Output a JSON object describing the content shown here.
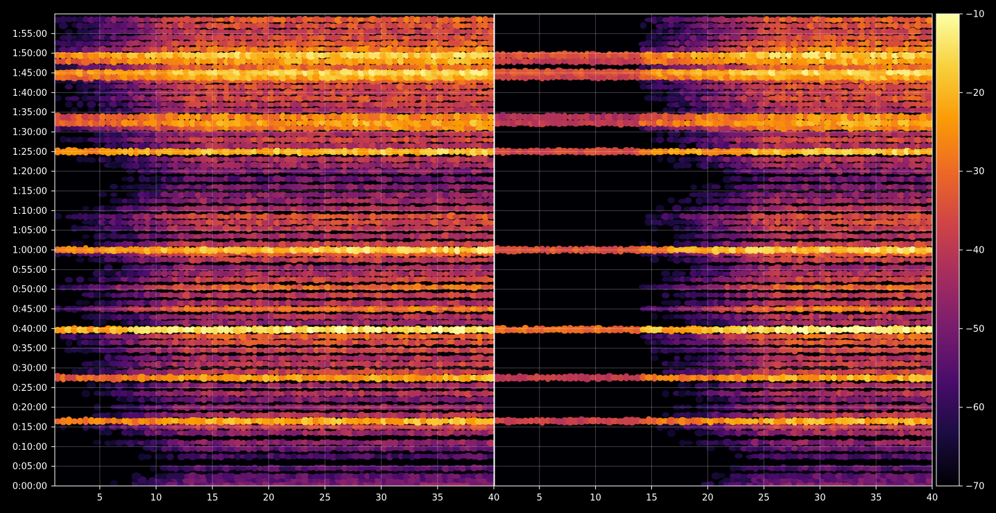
{
  "chart_data": {
    "type": "heatmap",
    "title": "",
    "xlabel": "",
    "ylabel": "",
    "background": "#000000",
    "grid": true,
    "colormap": "inferno",
    "colormap_stops": [
      "#000004",
      "#1b0c41",
      "#4a0c6b",
      "#781c6d",
      "#a52c60",
      "#cf4446",
      "#ed6925",
      "#fb9b06",
      "#f7d13d",
      "#fcffa4"
    ],
    "colorbar": {
      "range": [
        -70,
        -10
      ],
      "ticks": [
        -70,
        -60,
        -50,
        -40,
        -30,
        -20,
        -10
      ],
      "tick_labels": [
        "−70",
        "−60",
        "−50",
        "−40",
        "−30",
        "−20",
        "−10"
      ]
    },
    "y_axis": {
      "range_minutes": [
        0,
        120
      ],
      "ticks_minutes": [
        0,
        5,
        10,
        15,
        20,
        25,
        30,
        35,
        40,
        45,
        50,
        55,
        60,
        65,
        70,
        75,
        80,
        85,
        90,
        95,
        100,
        105,
        110,
        115
      ],
      "tick_labels": [
        "0:00:00",
        "0:05:00",
        "0:10:00",
        "0:15:00",
        "0:20:00",
        "0:25:00",
        "0:30:00",
        "0:35:00",
        "0:40:00",
        "0:45:00",
        "0:50:00",
        "0:55:00",
        "1:00:00",
        "1:05:00",
        "1:10:00",
        "1:15:00",
        "1:20:00",
        "1:25:00",
        "1:30:00",
        "1:35:00",
        "1:40:00",
        "1:45:00",
        "1:50:00",
        "1:55:00"
      ]
    },
    "panels": [
      {
        "id": "left",
        "x_range": [
          1,
          40
        ],
        "x_ticks": [
          5,
          10,
          15,
          20,
          25,
          30,
          35,
          40
        ],
        "x_tick_labels": [
          "5",
          "10",
          "15",
          "20",
          "25",
          "30",
          "35",
          "40"
        ],
        "onset_x": 1
      },
      {
        "id": "right",
        "x_range": [
          1,
          40
        ],
        "x_ticks": [
          5,
          10,
          15,
          20,
          25,
          30,
          35,
          40
        ],
        "x_tick_labels": [
          "5",
          "10",
          "15",
          "20",
          "25",
          "30",
          "35",
          "40"
        ],
        "onset_x": 14
      }
    ],
    "bands": [
      {
        "y_min": 0.5,
        "value": -52
      },
      {
        "y_min": 1.5,
        "value": -55
      },
      {
        "y_min": 2.5,
        "value": -57
      },
      {
        "y_min": 4.5,
        "value": -58
      },
      {
        "y_min": 7.5,
        "value": -60
      },
      {
        "y_min": 9.5,
        "value": -55
      },
      {
        "y_min": 11,
        "value": -50
      },
      {
        "y_min": 13.5,
        "value": -48
      },
      {
        "y_min": 15,
        "value": -42
      },
      {
        "y_min": 16.5,
        "value": -24
      },
      {
        "y_min": 18,
        "value": -45
      },
      {
        "y_min": 20,
        "value": -48
      },
      {
        "y_min": 22,
        "value": -52
      },
      {
        "y_min": 23.5,
        "value": -45
      },
      {
        "y_min": 25.5,
        "value": -48
      },
      {
        "y_min": 27.5,
        "value": -25
      },
      {
        "y_min": 29,
        "value": -40
      },
      {
        "y_min": 31,
        "value": -42
      },
      {
        "y_min": 32.5,
        "value": -45
      },
      {
        "y_min": 34.5,
        "value": -40
      },
      {
        "y_min": 36.5,
        "value": -38
      },
      {
        "y_min": 38,
        "value": -35
      },
      {
        "y_min": 39.7,
        "value": -16
      },
      {
        "y_min": 41.5,
        "value": -48
      },
      {
        "y_min": 43,
        "value": -45
      },
      {
        "y_min": 45,
        "value": -32
      },
      {
        "y_min": 46.5,
        "value": -45
      },
      {
        "y_min": 48.5,
        "value": -42
      },
      {
        "y_min": 50.5,
        "value": -34
      },
      {
        "y_min": 52.5,
        "value": -40
      },
      {
        "y_min": 54,
        "value": -45
      },
      {
        "y_min": 55.5,
        "value": -48
      },
      {
        "y_min": 57.5,
        "value": -42
      },
      {
        "y_min": 59,
        "value": -36
      },
      {
        "y_min": 60,
        "value": -20
      },
      {
        "y_min": 61.5,
        "value": -42
      },
      {
        "y_min": 63.5,
        "value": -45
      },
      {
        "y_min": 65.5,
        "value": -42
      },
      {
        "y_min": 67,
        "value": -40
      },
      {
        "y_min": 68.5,
        "value": -38
      },
      {
        "y_min": 70.5,
        "value": -45
      },
      {
        "y_min": 72.5,
        "value": -48
      },
      {
        "y_min": 74,
        "value": -50
      },
      {
        "y_min": 76,
        "value": -52
      },
      {
        "y_min": 78,
        "value": -55
      },
      {
        "y_min": 80,
        "value": -52
      },
      {
        "y_min": 81.5,
        "value": -48
      },
      {
        "y_min": 83,
        "value": -45
      },
      {
        "y_min": 85,
        "value": -22
      },
      {
        "y_min": 86.5,
        "value": -45
      },
      {
        "y_min": 88,
        "value": -40
      },
      {
        "y_min": 89.5,
        "value": -45
      },
      {
        "y_min": 91,
        "value": -30
      },
      {
        "y_min": 92.3,
        "value": -25
      },
      {
        "y_min": 93.8,
        "value": -28
      },
      {
        "y_min": 95.5,
        "value": -45
      },
      {
        "y_min": 97,
        "value": -42
      },
      {
        "y_min": 98.5,
        "value": -38
      },
      {
        "y_min": 100,
        "value": -40
      },
      {
        "y_min": 101.5,
        "value": -38
      },
      {
        "y_min": 103,
        "value": -35
      },
      {
        "y_min": 104,
        "value": -24
      },
      {
        "y_min": 105.2,
        "value": -20
      },
      {
        "y_min": 106.5,
        "value": -32
      },
      {
        "y_min": 108,
        "value": -25
      },
      {
        "y_min": 109.5,
        "value": -20
      },
      {
        "y_min": 111,
        "value": -30
      },
      {
        "y_min": 112.5,
        "value": -35
      },
      {
        "y_min": 114,
        "value": -38
      },
      {
        "y_min": 115.5,
        "value": -40
      },
      {
        "y_min": 117,
        "value": -38
      },
      {
        "y_min": 118.5,
        "value": -35
      }
    ]
  }
}
